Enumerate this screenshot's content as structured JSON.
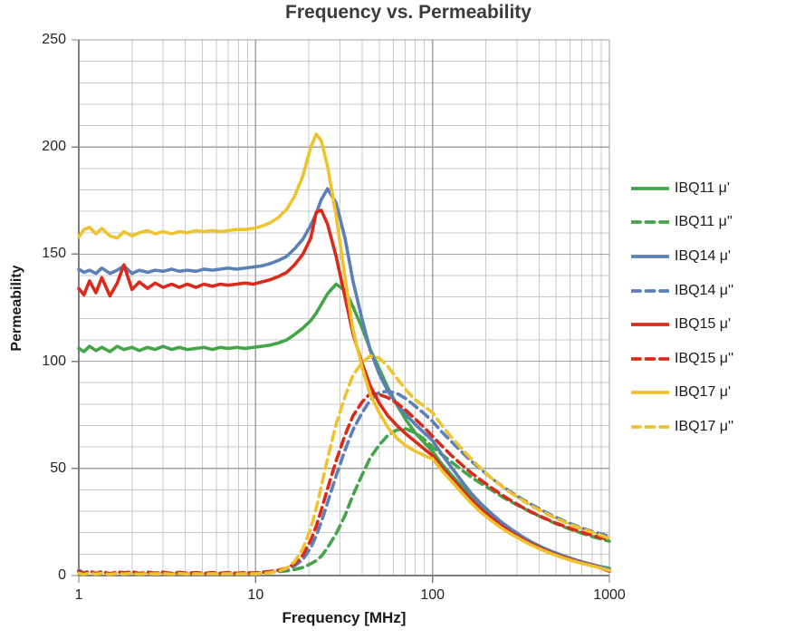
{
  "chart_data": {
    "type": "line",
    "title": "Frequency vs. Permeability",
    "xlabel": "Frequency [MHz]",
    "ylabel": "Permeability",
    "x_scale": "log",
    "xlim": [
      1,
      1000
    ],
    "ylim": [
      0,
      250
    ],
    "x_ticks": [
      "1",
      "10",
      "100",
      "1000"
    ],
    "y_ticks": [
      "0",
      "50",
      "100",
      "150",
      "200",
      "250"
    ],
    "y_major_step": 50,
    "y_minor_step": 10,
    "grid": "major+minor",
    "legend_position": "right",
    "x": [
      1,
      1.07,
      1.15,
      1.25,
      1.35,
      1.5,
      1.65,
      1.8,
      2,
      2.2,
      2.45,
      2.7,
      3,
      3.35,
      3.7,
      4.1,
      4.6,
      5.1,
      5.7,
      6.3,
      7,
      7.8,
      8.7,
      9.7,
      10.8,
      12,
      13.4,
      15,
      16.6,
      18.5,
      20.5,
      22,
      23.5,
      25.5,
      28.5,
      32,
      35.5,
      40,
      44.5,
      50,
      56,
      63,
      71,
      80,
      90,
      100,
      113,
      128,
      145,
      165,
      188,
      215,
      245,
      280,
      320,
      365,
      420,
      480,
      550,
      630,
      720,
      830,
      1000
    ],
    "series": [
      {
        "id": "ibq11-mu-prime",
        "name": "IBQ11 μ'",
        "color": "#44a449",
        "dash": false,
        "values": [
          106,
          104.5,
          107,
          105,
          106.5,
          104.5,
          107,
          105.5,
          106.5,
          105,
          106.5,
          105.5,
          107,
          105.5,
          106.5,
          105.5,
          106,
          106.5,
          105.5,
          106.5,
          106,
          106.5,
          106,
          106.5,
          107,
          107.5,
          108.5,
          110,
          112.5,
          115.5,
          119,
          122.5,
          126.5,
          131.5,
          136,
          133,
          125.5,
          115.5,
          105.5,
          96.5,
          87.5,
          79.5,
          72.5,
          66.5,
          62,
          58,
          52,
          47,
          42,
          37,
          32.5,
          28,
          24.5,
          21,
          18,
          15.4,
          13,
          10.9,
          9.1,
          7.5,
          6.1,
          4.7,
          3.4
        ]
      },
      {
        "id": "ibq11-mu-double-prime",
        "name": "IBQ11 μ''",
        "color": "#44a449",
        "dash": true,
        "values": [
          1.5,
          0.8,
          1.8,
          1,
          1.6,
          0.7,
          1.4,
          1,
          1.5,
          0.8,
          1.3,
          1,
          1.4,
          0.9,
          1.3,
          1,
          1.2,
          0.9,
          1.2,
          1,
          1.2,
          1,
          1.2,
          1.1,
          1.3,
          1.5,
          1.8,
          2.2,
          2.8,
          3.8,
          5.5,
          7,
          9,
          13,
          19.5,
          28,
          37.5,
          47,
          55,
          61,
          65.5,
          68,
          68.5,
          66.5,
          63.5,
          60,
          56.5,
          53,
          49.5,
          46,
          43,
          40,
          37,
          34.3,
          31.8,
          29.3,
          27,
          24.8,
          22.8,
          21,
          19.4,
          17.8,
          16
        ]
      },
      {
        "id": "ibq14-mu-prime",
        "name": "IBQ14 μ'",
        "color": "#5b7fb7",
        "dash": false,
        "values": [
          143,
          141.5,
          142.5,
          141,
          143.5,
          141,
          142.5,
          144.5,
          141,
          142.5,
          141.5,
          142.5,
          142,
          143,
          142,
          142.5,
          142,
          143,
          142.5,
          143,
          143.5,
          143,
          143.5,
          144,
          144.5,
          145.5,
          147,
          149,
          152.5,
          157,
          163.5,
          169,
          175.5,
          180.5,
          174,
          157.5,
          137.5,
          119.5,
          105,
          94,
          86,
          80,
          75,
          70.5,
          66.5,
          63,
          56.5,
          50.5,
          44.5,
          38.5,
          33.5,
          29,
          25,
          21.5,
          18.3,
          15.5,
          13,
          11,
          9.2,
          7.5,
          6.1,
          4.8,
          2.8
        ]
      },
      {
        "id": "ibq14-mu-double-prime",
        "name": "IBQ14 μ''",
        "color": "#5b7fb7",
        "dash": true,
        "values": [
          2.5,
          1.2,
          2,
          1,
          1.8,
          0.9,
          1.6,
          1.1,
          1.7,
          1,
          1.5,
          1.1,
          1.5,
          1,
          1.4,
          1.1,
          1.4,
          1,
          1.3,
          1.1,
          1.3,
          1.1,
          1.3,
          1.2,
          1.4,
          1.7,
          2.2,
          3,
          4.5,
          7.5,
          13,
          18.5,
          25,
          34,
          46.5,
          58.5,
          68,
          76,
          82,
          85.5,
          86,
          85,
          82.5,
          79,
          75.5,
          72,
          67,
          62.5,
          58,
          53.5,
          49.5,
          45.5,
          42,
          38.8,
          35.8,
          33,
          30.3,
          27.8,
          25.6,
          23.6,
          21.8,
          20.2,
          18.3
        ]
      },
      {
        "id": "ibq15-mu-prime",
        "name": "IBQ15 μ'",
        "color": "#da2a1c",
        "dash": false,
        "values": [
          134,
          131,
          137.5,
          132,
          139,
          130.5,
          136.5,
          145,
          133.5,
          137,
          134,
          136.5,
          134.5,
          136,
          134.5,
          136,
          134.5,
          136,
          135,
          136,
          135.5,
          136,
          136.5,
          136,
          137,
          138,
          139.5,
          141.5,
          145,
          150,
          157.5,
          169.5,
          170.5,
          164,
          149,
          130,
          113,
          99,
          88.5,
          80.5,
          74.5,
          70,
          66,
          62.5,
          59,
          56,
          50.5,
          45.5,
          40.5,
          35.5,
          31,
          27,
          23.3,
          20,
          17.2,
          14.7,
          12.3,
          10.3,
          8.6,
          7,
          5.6,
          4.4,
          2
        ]
      },
      {
        "id": "ibq15-mu-double-prime",
        "name": "IBQ15 μ''",
        "color": "#da2a1c",
        "dash": true,
        "values": [
          2,
          1,
          2.2,
          0.9,
          1.9,
          0.8,
          1.7,
          1.3,
          1.8,
          1,
          1.6,
          1.1,
          1.6,
          1,
          1.5,
          1.1,
          1.4,
          1,
          1.4,
          1.1,
          1.4,
          1.1,
          1.4,
          1.2,
          1.5,
          1.9,
          2.5,
          3.5,
          5.5,
          9.5,
          16.5,
          23,
          30.5,
          40.5,
          53.5,
          65.5,
          74.5,
          81,
          85,
          84.5,
          83,
          80.5,
          77,
          73,
          69,
          65,
          60.5,
          56,
          52,
          48,
          44.5,
          41,
          37.8,
          34.8,
          32,
          29.5,
          27.2,
          25,
          23.2,
          21.4,
          19.9,
          18.4,
          16.7
        ]
      },
      {
        "id": "ibq17-mu-prime",
        "name": "IBQ17 μ'",
        "color": "#efc32f",
        "dash": false,
        "values": [
          158,
          161.5,
          162.5,
          159.5,
          162,
          158.5,
          157.5,
          160.5,
          158.5,
          160,
          161,
          159.5,
          160.5,
          159.5,
          160.5,
          160,
          161,
          160.5,
          161,
          160.5,
          161,
          161.5,
          161.5,
          162,
          163,
          164.5,
          167,
          171,
          177,
          186.5,
          200,
          206,
          203,
          191,
          168,
          139,
          115,
          97,
          84.5,
          76,
          69,
          64,
          60.5,
          58,
          56,
          54.5,
          49,
          44,
          39,
          34,
          29.5,
          25.6,
          22.2,
          19.2,
          16.5,
          14.1,
          11.8,
          9.9,
          8.2,
          6.7,
          5.4,
          4.2,
          2.4
        ]
      },
      {
        "id": "ibq17-mu-double-prime",
        "name": "IBQ17 μ''",
        "color": "#efc32f",
        "dash": true,
        "values": [
          1,
          0.5,
          1.2,
          0.6,
          1.1,
          0.5,
          1,
          0.7,
          1.1,
          0.6,
          1,
          0.7,
          1,
          0.6,
          1,
          0.7,
          0.9,
          0.7,
          0.9,
          0.7,
          0.9,
          0.7,
          0.9,
          0.8,
          1,
          1.3,
          2,
          3.5,
          6.5,
          12.5,
          22,
          31.5,
          41.5,
          54.5,
          70.5,
          83.5,
          93.5,
          99.5,
          102.5,
          101.5,
          97.5,
          92,
          86.5,
          82,
          79,
          76,
          70,
          64.5,
          59.5,
          54.5,
          50,
          45.5,
          41.8,
          38.3,
          35.3,
          32.4,
          29.8,
          27.3,
          25.2,
          23.2,
          21.4,
          19.8,
          17.3
        ]
      }
    ]
  }
}
